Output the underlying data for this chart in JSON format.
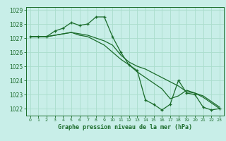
{
  "title": "Graphe pression niveau de la mer (hPa)",
  "bg_color": "#c8eee8",
  "grid_color": "#aaddcc",
  "line_color": "#1a6b2a",
  "xlim": [
    -0.5,
    23.5
  ],
  "ylim": [
    1021.5,
    1029.2
  ],
  "yticks": [
    1022,
    1023,
    1024,
    1025,
    1026,
    1027,
    1028,
    1029
  ],
  "xticks": [
    0,
    1,
    2,
    3,
    4,
    5,
    6,
    7,
    8,
    9,
    10,
    11,
    12,
    13,
    14,
    15,
    16,
    17,
    18,
    19,
    20,
    21,
    22,
    23
  ],
  "series": [
    {
      "x": [
        0,
        1,
        2,
        3,
        4,
        5,
        6,
        7,
        8,
        9,
        10,
        11,
        12,
        13,
        14,
        15,
        16,
        17,
        18,
        19,
        20,
        21,
        22,
        23
      ],
      "y": [
        1027.1,
        1027.1,
        1027.1,
        1027.5,
        1027.7,
        1028.1,
        1027.9,
        1028.0,
        1028.5,
        1028.5,
        1027.1,
        1026.0,
        1025.1,
        1024.7,
        1022.6,
        1022.3,
        1021.9,
        1022.3,
        1024.0,
        1023.1,
        1023.0,
        1022.1,
        1021.9,
        1022.0
      ],
      "has_markers": true
    },
    {
      "x": [
        0,
        1,
        2,
        3,
        4,
        5,
        6,
        7,
        8,
        9,
        10,
        11,
        12,
        13,
        14,
        15,
        16,
        17,
        18,
        19,
        20,
        21,
        22,
        23
      ],
      "y": [
        1027.1,
        1027.1,
        1027.1,
        1027.2,
        1027.3,
        1027.4,
        1027.3,
        1027.2,
        1027.0,
        1026.8,
        1026.5,
        1025.8,
        1025.3,
        1025.0,
        1024.8,
        1024.5,
        1024.2,
        1023.9,
        1023.6,
        1023.2,
        1023.1,
        1022.9,
        1022.5,
        1022.1
      ],
      "has_markers": false
    },
    {
      "x": [
        0,
        1,
        2,
        3,
        4,
        5,
        6,
        7,
        8,
        9,
        10,
        11,
        12,
        13,
        14,
        15,
        16,
        17,
        18,
        19,
        20,
        21,
        22,
        23
      ],
      "y": [
        1027.1,
        1027.1,
        1027.1,
        1027.2,
        1027.3,
        1027.4,
        1027.2,
        1027.1,
        1026.8,
        1026.5,
        1026.0,
        1025.5,
        1025.1,
        1024.6,
        1024.2,
        1023.8,
        1023.4,
        1022.7,
        1022.9,
        1023.3,
        1023.1,
        1022.8,
        1022.4,
        1022.0
      ],
      "has_markers": false
    }
  ]
}
